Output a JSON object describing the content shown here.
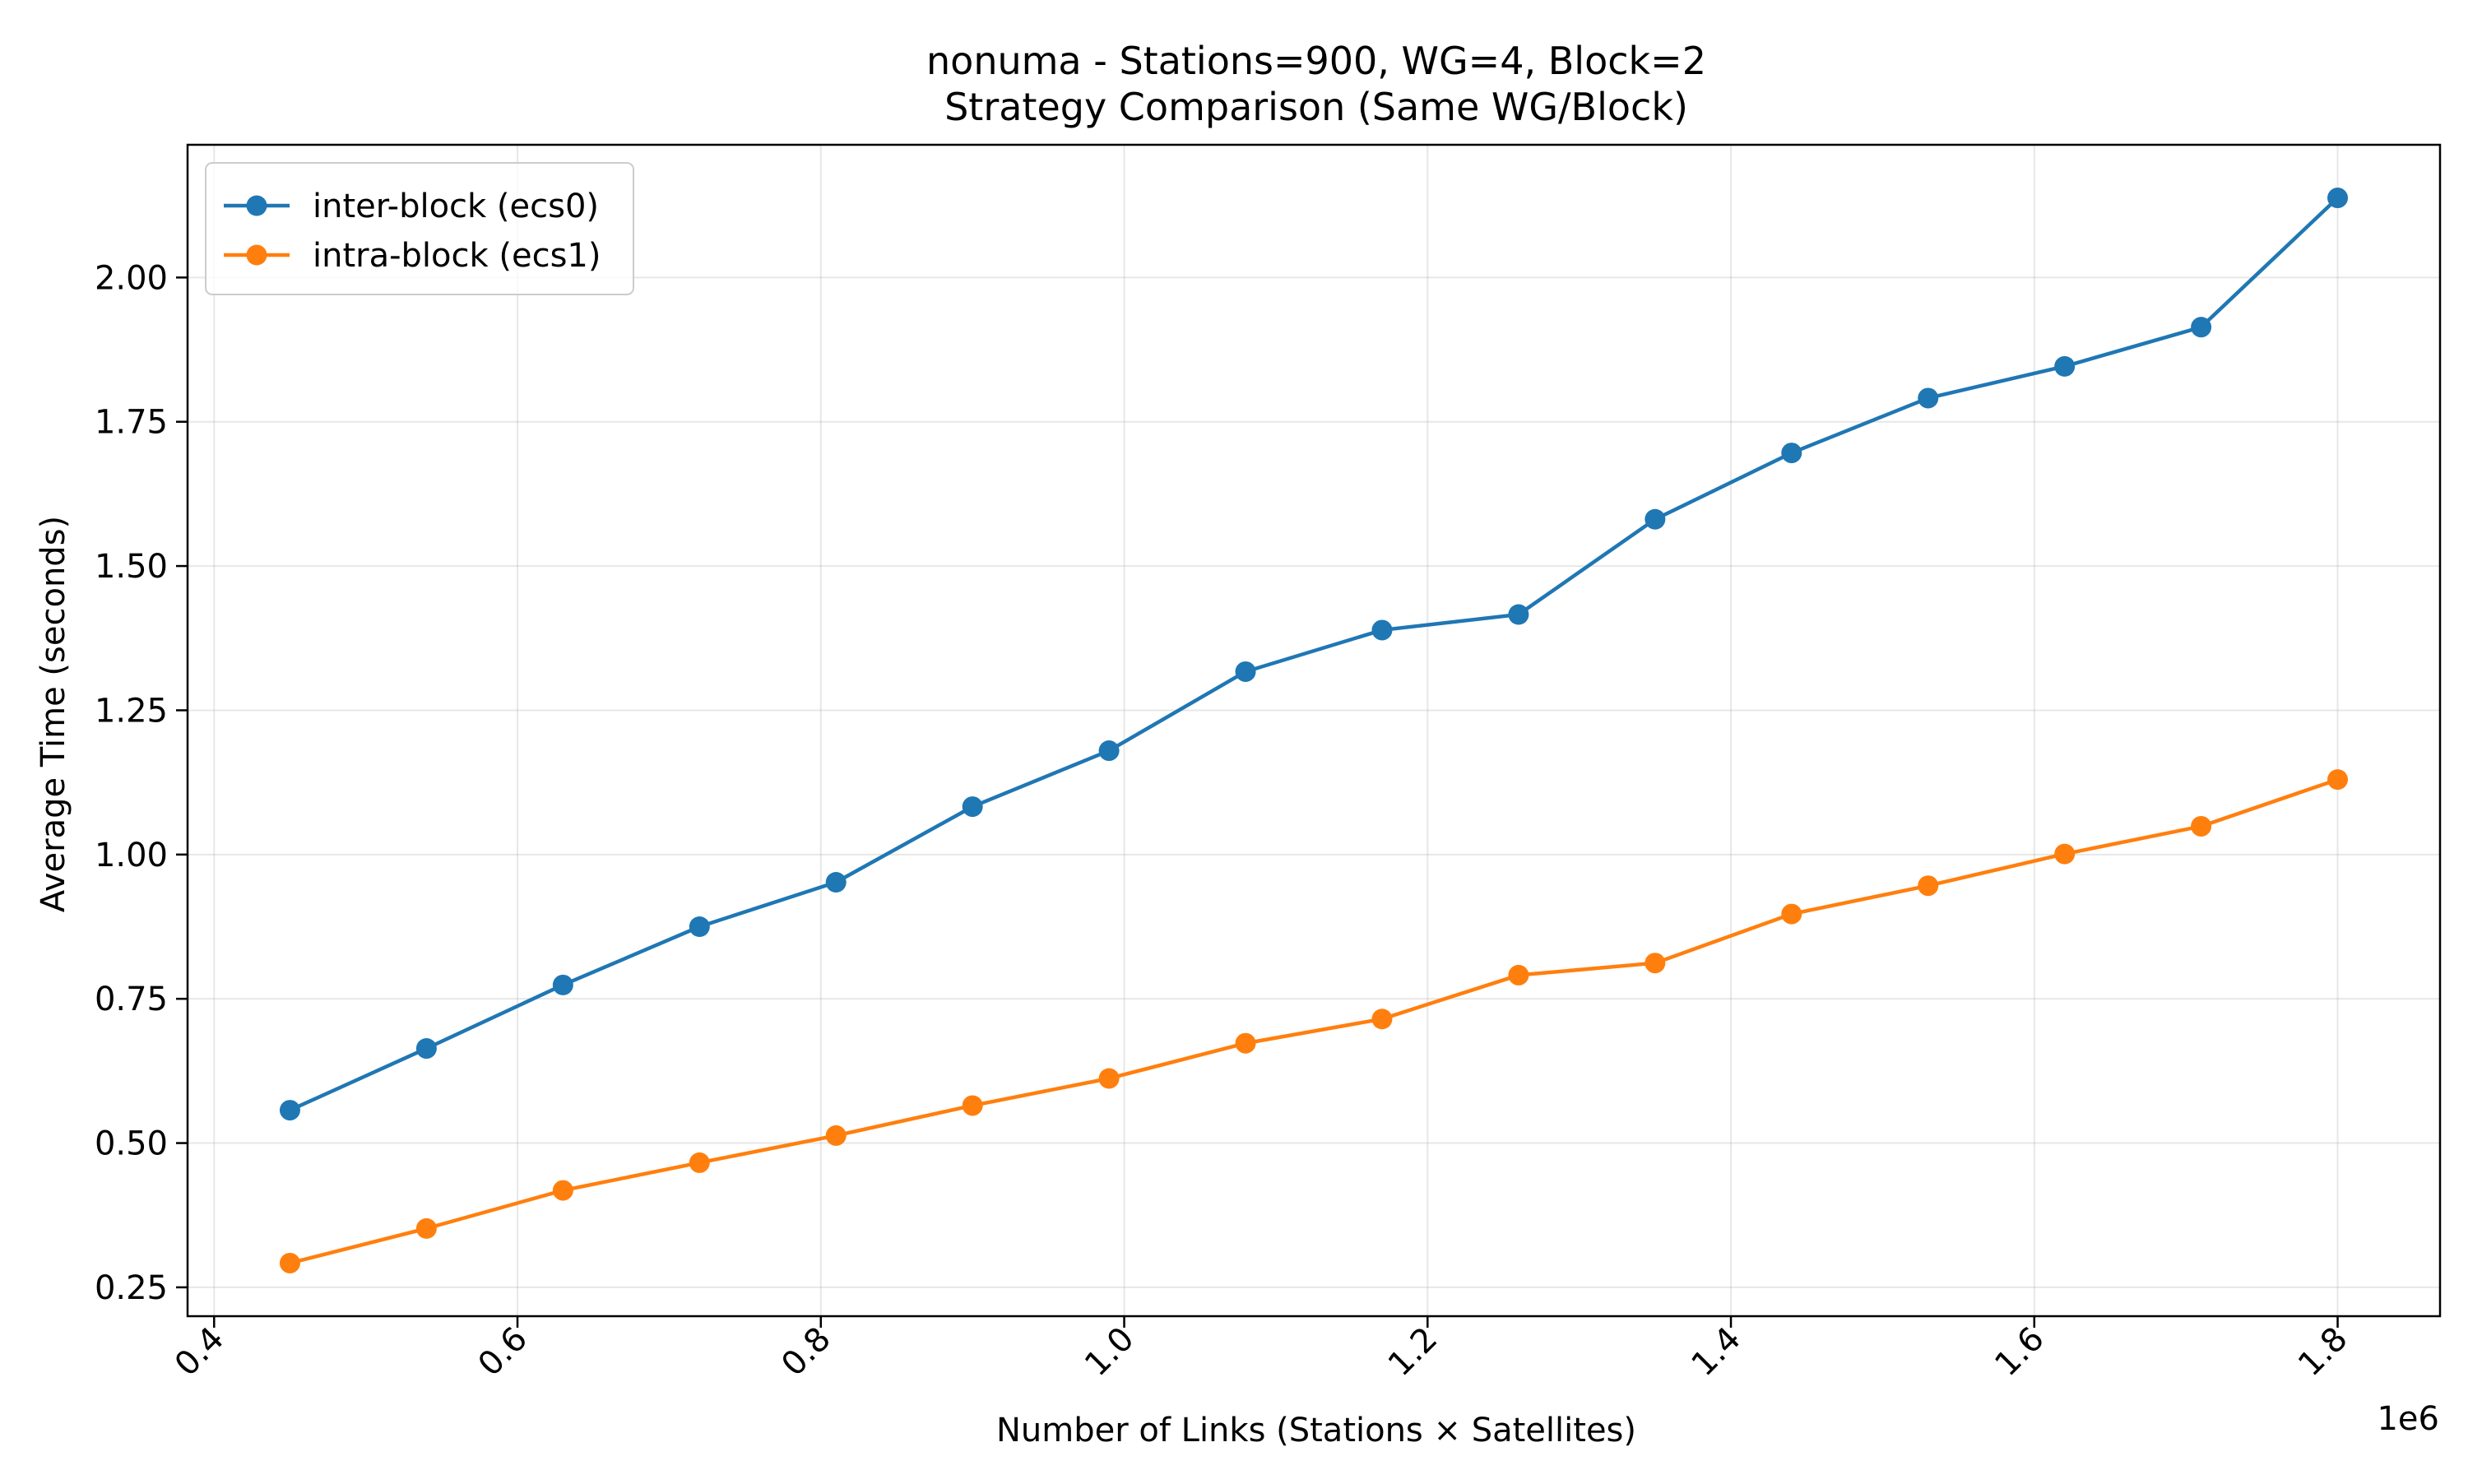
{
  "chart_data": {
    "type": "line",
    "title": "nonuma - Stations=900, WG=4, Block=2",
    "subtitle": "Strategy Comparison (Same WG/Block)",
    "xlabel": "Number of Links (Stations × Satellites)",
    "ylabel": "Average Time (seconds)",
    "x_offset_label": "1e6",
    "x_scale_multiplier": 1000000,
    "x": [
      450000,
      540000,
      630000,
      720000,
      810000,
      900000,
      990000,
      1080000,
      1170000,
      1260000,
      1350000,
      1440000,
      1530000,
      1620000,
      1710000,
      1800000
    ],
    "series": [
      {
        "name": "inter-block (ecs0)",
        "color": "#1f77b4",
        "values": [
          0.557,
          0.664,
          0.774,
          0.875,
          0.952,
          1.083,
          1.18,
          1.317,
          1.389,
          1.416,
          1.581,
          1.696,
          1.791,
          1.846,
          1.914,
          2.138
        ]
      },
      {
        "name": "intra-block (ecs1)",
        "color": "#ff7f0e",
        "values": [
          0.292,
          0.352,
          0.418,
          0.466,
          0.513,
          0.565,
          0.612,
          0.673,
          0.715,
          0.791,
          0.812,
          0.897,
          0.946,
          1.001,
          1.049,
          1.13
        ]
      }
    ],
    "xlim": [
      382500,
      1867500
    ],
    "ylim": [
      0.2,
      2.23
    ],
    "xticks": [
      400000,
      600000,
      800000,
      1000000,
      1200000,
      1400000,
      1600000,
      1800000
    ],
    "xtick_labels": [
      "0.4",
      "0.6",
      "0.8",
      "1.0",
      "1.2",
      "1.4",
      "1.6",
      "1.8"
    ],
    "yticks": [
      0.25,
      0.5,
      0.75,
      1.0,
      1.25,
      1.5,
      1.75,
      2.0
    ],
    "ytick_labels": [
      "0.25",
      "0.50",
      "0.75",
      "1.00",
      "1.25",
      "1.50",
      "1.75",
      "2.00"
    ],
    "grid": true,
    "legend_position": "upper-left"
  }
}
